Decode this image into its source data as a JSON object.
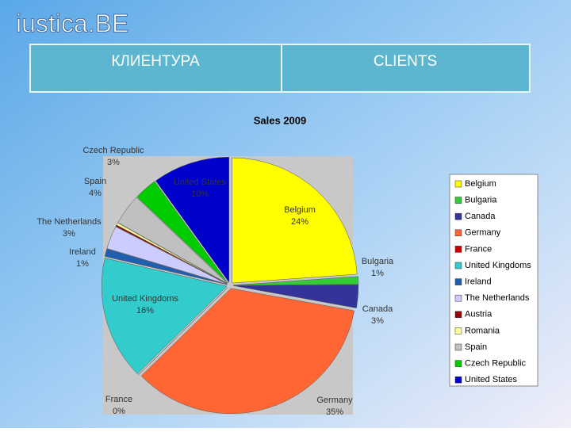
{
  "logo": "iustica.BE",
  "header": {
    "cells": [
      "КЛИЕНТУРА",
      "CLIENTS"
    ]
  },
  "chart_data": {
    "type": "pie",
    "title": "Sales 2009",
    "categories": [
      "Belgium",
      "Bulgaria",
      "Canada",
      "Germany",
      "France",
      "United Kingdoms",
      "Ireland",
      "The Netherlands",
      "Austria",
      "Romania",
      "Spain",
      "Czech Republic",
      "United States"
    ],
    "values": [
      24,
      1,
      3,
      35,
      0,
      16,
      1,
      3,
      0.2,
      0.3,
      4,
      3,
      10
    ],
    "value_labels": [
      "24%",
      "1%",
      "3%",
      "35%",
      "0%",
      "16%",
      "1%",
      "3%",
      null,
      null,
      "4%",
      "3%",
      "10%"
    ],
    "colors": [
      "#ffff00",
      "#33cc33",
      "#333399",
      "#ff6633",
      "#cc0000",
      "#33cccc",
      "#1f5fb0",
      "#ccccff",
      "#990000",
      "#ffff99",
      "#c0c0c0",
      "#00cc00",
      "#0000cc"
    ],
    "legend": "right"
  }
}
